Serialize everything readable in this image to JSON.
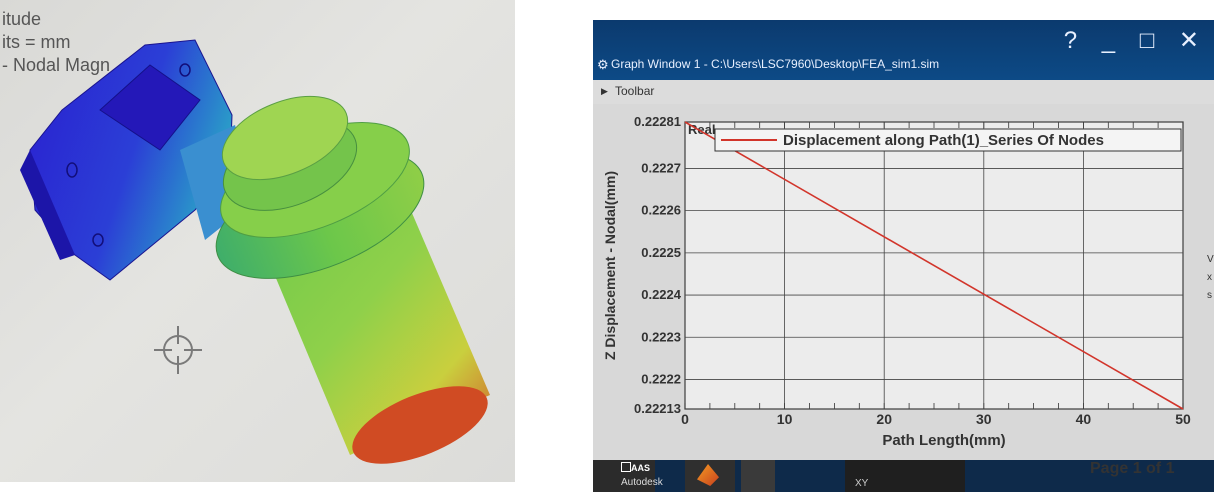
{
  "left_photo": {
    "legend_lines": [
      "itude",
      "its = mm",
      "- Nodal Magn"
    ],
    "colors": {
      "low": "#1f24c8",
      "mid": "#4fc24a",
      "high": "#d63a1f"
    },
    "icons": [
      "crosshair-icon"
    ]
  },
  "graph_window": {
    "title": "Graph Window 1 - C:\\Users\\LSC7960\\Desktop\\FEA_sim1.sim",
    "controls_label": "? _ □ ✕",
    "toolbar_label": "Toolbar",
    "page_indicator": "Page 1 of 1",
    "side_fragments": [
      "V",
      "x",
      "s"
    ],
    "chart_data": {
      "type": "line",
      "xlabel": "Path Length(mm)",
      "ylabel": "Z Displacement - Nodal(mm)",
      "corner_label": "Real",
      "x_ticks": [
        0,
        10,
        20,
        30,
        40,
        50
      ],
      "y_ticks": [
        0.22281,
        0.2227,
        0.2226,
        0.2225,
        0.2224,
        0.2223,
        0.2222,
        0.22213
      ],
      "y_tick_labels": [
        "0.22281",
        "0.2227",
        "0.2226",
        "0.2225",
        "0.2224",
        "0.2223",
        "0.2222",
        "0.22213"
      ],
      "xlim": [
        0,
        50
      ],
      "ylim": [
        0.22213,
        0.22281
      ],
      "grid": true,
      "legend_position": "top-right",
      "series": [
        {
          "name": "Displacement along Path(1)_Series Of Nodes",
          "color": "#d2352b",
          "x": [
            0,
            50
          ],
          "y": [
            0.22281,
            0.22213
          ]
        }
      ]
    }
  },
  "taskbar": {
    "items": [
      {
        "badge": "AAS",
        "label": "Autodesk"
      },
      {
        "label": "MATLAB"
      },
      {
        "label": ""
      },
      {
        "label": "XY"
      }
    ]
  }
}
